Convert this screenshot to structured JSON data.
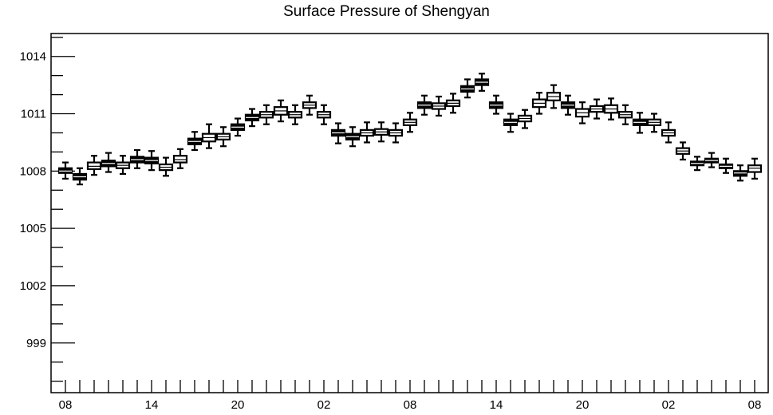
{
  "chart_data": {
    "type": "boxplot",
    "title": "Surface Pressure of Shengyan",
    "xlabel": "",
    "ylabel": "",
    "ylim": [
      996.4,
      1015.2
    ],
    "yticks": [
      999,
      1002,
      1005,
      1008,
      1011,
      1014
    ],
    "x_tick_labels": [
      "08",
      "14",
      "20",
      "02",
      "08",
      "14",
      "20",
      "02",
      "08"
    ],
    "x_tick_label_steps": [
      0,
      6,
      12,
      18,
      24,
      30,
      36,
      42,
      48
    ],
    "grid": false,
    "legend": "none",
    "series": [
      {
        "values": [
          {
            "med": 1008.0,
            "q1": 1007.9,
            "q3": 1008.15,
            "wlo": 1007.6,
            "whi": 1008.45,
            "fill": "dark"
          },
          {
            "med": 1007.7,
            "q1": 1007.55,
            "q3": 1007.85,
            "wlo": 1007.3,
            "whi": 1008.15,
            "fill": "dark"
          },
          {
            "med": 1008.25,
            "q1": 1008.1,
            "q3": 1008.45,
            "wlo": 1007.8,
            "whi": 1008.8,
            "fill": "light"
          },
          {
            "med": 1008.4,
            "q1": 1008.25,
            "q3": 1008.55,
            "wlo": 1007.95,
            "whi": 1008.95,
            "fill": "dark"
          },
          {
            "med": 1008.3,
            "q1": 1008.15,
            "q3": 1008.45,
            "wlo": 1007.85,
            "whi": 1008.8,
            "fill": "light"
          },
          {
            "med": 1008.6,
            "q1": 1008.45,
            "q3": 1008.75,
            "wlo": 1008.15,
            "whi": 1009.1,
            "fill": "dark"
          },
          {
            "med": 1008.55,
            "q1": 1008.4,
            "q3": 1008.7,
            "wlo": 1008.05,
            "whi": 1009.05,
            "fill": "dark"
          },
          {
            "med": 1008.2,
            "q1": 1008.05,
            "q3": 1008.35,
            "wlo": 1007.75,
            "whi": 1008.7,
            "fill": "light"
          },
          {
            "med": 1008.6,
            "q1": 1008.45,
            "q3": 1008.8,
            "wlo": 1008.15,
            "whi": 1009.15,
            "fill": "light"
          },
          {
            "med": 1009.55,
            "q1": 1009.4,
            "q3": 1009.7,
            "wlo": 1009.1,
            "whi": 1010.05,
            "fill": "dark"
          },
          {
            "med": 1009.75,
            "q1": 1009.55,
            "q3": 1009.95,
            "wlo": 1009.2,
            "whi": 1010.45,
            "fill": "light"
          },
          {
            "med": 1009.8,
            "q1": 1009.65,
            "q3": 1009.95,
            "wlo": 1009.3,
            "whi": 1010.3,
            "fill": "light"
          },
          {
            "med": 1010.3,
            "q1": 1010.15,
            "q3": 1010.45,
            "wlo": 1009.85,
            "whi": 1010.75,
            "fill": "dark"
          },
          {
            "med": 1010.8,
            "q1": 1010.65,
            "q3": 1010.95,
            "wlo": 1010.35,
            "whi": 1011.25,
            "fill": "dark"
          },
          {
            "med": 1010.95,
            "q1": 1010.8,
            "q3": 1011.1,
            "wlo": 1010.45,
            "whi": 1011.45,
            "fill": "light"
          },
          {
            "med": 1011.15,
            "q1": 1010.95,
            "q3": 1011.35,
            "wlo": 1010.6,
            "whi": 1011.7,
            "fill": "light"
          },
          {
            "med": 1010.95,
            "q1": 1010.8,
            "q3": 1011.1,
            "wlo": 1010.45,
            "whi": 1011.45,
            "fill": "light"
          },
          {
            "med": 1011.45,
            "q1": 1011.3,
            "q3": 1011.6,
            "wlo": 1010.95,
            "whi": 1011.95,
            "fill": "light"
          },
          {
            "med": 1010.95,
            "q1": 1010.8,
            "q3": 1011.1,
            "wlo": 1010.45,
            "whi": 1011.45,
            "fill": "light"
          },
          {
            "med": 1010.0,
            "q1": 1009.85,
            "q3": 1010.15,
            "wlo": 1009.45,
            "whi": 1010.5,
            "fill": "dark"
          },
          {
            "med": 1009.8,
            "q1": 1009.65,
            "q3": 1009.95,
            "wlo": 1009.3,
            "whi": 1010.3,
            "fill": "dark"
          },
          {
            "med": 1010.0,
            "q1": 1009.85,
            "q3": 1010.15,
            "wlo": 1009.5,
            "whi": 1010.55,
            "fill": "light"
          },
          {
            "med": 1010.05,
            "q1": 1009.9,
            "q3": 1010.2,
            "wlo": 1009.55,
            "whi": 1010.55,
            "fill": "light"
          },
          {
            "med": 1010.0,
            "q1": 1009.85,
            "q3": 1010.15,
            "wlo": 1009.5,
            "whi": 1010.5,
            "fill": "light"
          },
          {
            "med": 1010.55,
            "q1": 1010.4,
            "q3": 1010.7,
            "wlo": 1010.05,
            "whi": 1011.05,
            "fill": "light"
          },
          {
            "med": 1011.45,
            "q1": 1011.3,
            "q3": 1011.6,
            "wlo": 1010.95,
            "whi": 1011.95,
            "fill": "dark"
          },
          {
            "med": 1011.4,
            "q1": 1011.25,
            "q3": 1011.55,
            "wlo": 1010.9,
            "whi": 1011.9,
            "fill": "light"
          },
          {
            "med": 1011.55,
            "q1": 1011.4,
            "q3": 1011.7,
            "wlo": 1011.05,
            "whi": 1012.05,
            "fill": "light"
          },
          {
            "med": 1012.3,
            "q1": 1012.15,
            "q3": 1012.45,
            "wlo": 1011.85,
            "whi": 1012.8,
            "fill": "dark"
          },
          {
            "med": 1012.65,
            "q1": 1012.5,
            "q3": 1012.8,
            "wlo": 1012.2,
            "whi": 1013.1,
            "fill": "dark"
          },
          {
            "med": 1011.45,
            "q1": 1011.3,
            "q3": 1011.6,
            "wlo": 1011.0,
            "whi": 1011.95,
            "fill": "dark"
          },
          {
            "med": 1010.55,
            "q1": 1010.4,
            "q3": 1010.7,
            "wlo": 1010.05,
            "whi": 1011.0,
            "fill": "dark"
          },
          {
            "med": 1010.75,
            "q1": 1010.6,
            "q3": 1010.9,
            "wlo": 1010.25,
            "whi": 1011.2,
            "fill": "light"
          },
          {
            "med": 1011.55,
            "q1": 1011.35,
            "q3": 1011.75,
            "wlo": 1011.0,
            "whi": 1012.1,
            "fill": "light"
          },
          {
            "med": 1011.9,
            "q1": 1011.7,
            "q3": 1012.1,
            "wlo": 1011.3,
            "whi": 1012.5,
            "fill": "light"
          },
          {
            "med": 1011.45,
            "q1": 1011.3,
            "q3": 1011.6,
            "wlo": 1010.95,
            "whi": 1011.95,
            "fill": "dark"
          },
          {
            "med": 1011.05,
            "q1": 1010.85,
            "q3": 1011.25,
            "wlo": 1010.5,
            "whi": 1011.6,
            "fill": "light"
          },
          {
            "med": 1011.25,
            "q1": 1011.1,
            "q3": 1011.4,
            "wlo": 1010.75,
            "whi": 1011.75,
            "fill": "light"
          },
          {
            "med": 1011.25,
            "q1": 1011.05,
            "q3": 1011.45,
            "wlo": 1010.7,
            "whi": 1011.8,
            "fill": "light"
          },
          {
            "med": 1010.95,
            "q1": 1010.8,
            "q3": 1011.1,
            "wlo": 1010.45,
            "whi": 1011.45,
            "fill": "light"
          },
          {
            "med": 1010.55,
            "q1": 1010.4,
            "q3": 1010.7,
            "wlo": 1010.0,
            "whi": 1011.05,
            "fill": "dark"
          },
          {
            "med": 1010.55,
            "q1": 1010.4,
            "q3": 1010.7,
            "wlo": 1010.05,
            "whi": 1011.0,
            "fill": "light"
          },
          {
            "med": 1010.0,
            "q1": 1009.85,
            "q3": 1010.15,
            "wlo": 1009.5,
            "whi": 1010.55,
            "fill": "light"
          },
          {
            "med": 1009.05,
            "q1": 1008.9,
            "q3": 1009.2,
            "wlo": 1008.6,
            "whi": 1009.5,
            "fill": "light"
          },
          {
            "med": 1008.4,
            "q1": 1008.3,
            "q3": 1008.5,
            "wlo": 1008.05,
            "whi": 1008.75,
            "fill": "dark"
          },
          {
            "med": 1008.55,
            "q1": 1008.45,
            "q3": 1008.65,
            "wlo": 1008.2,
            "whi": 1008.95,
            "fill": "dark"
          },
          {
            "med": 1008.25,
            "q1": 1008.15,
            "q3": 1008.35,
            "wlo": 1007.9,
            "whi": 1008.65,
            "fill": "dark"
          },
          {
            "med": 1007.9,
            "q1": 1007.75,
            "q3": 1008.0,
            "wlo": 1007.5,
            "whi": 1008.3,
            "fill": "dark"
          },
          {
            "med": 1008.15,
            "q1": 1007.95,
            "q3": 1008.3,
            "wlo": 1007.6,
            "whi": 1008.65,
            "fill": "light"
          }
        ]
      }
    ]
  }
}
